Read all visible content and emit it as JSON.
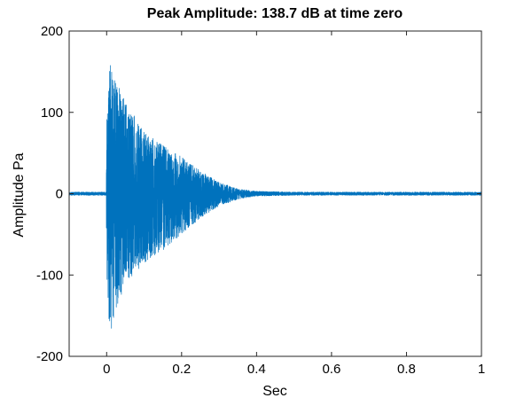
{
  "chart_data": {
    "type": "line",
    "title": "Peak Amplitude: 138.7 dB at time zero",
    "xlabel": "Sec",
    "ylabel": "Amplitude Pa",
    "xlim": [
      -0.1,
      1.0
    ],
    "ylim": [
      -200,
      200
    ],
    "xticks": [
      0,
      0.2,
      0.4,
      0.6,
      0.8,
      1.0
    ],
    "xtick_labels": [
      "0",
      "0.2",
      "0.4",
      "0.6",
      "0.8",
      "1"
    ],
    "yticks": [
      -200,
      -100,
      0,
      100,
      200
    ],
    "ytick_labels": [
      "-200",
      "-100",
      "0",
      "100",
      "200"
    ],
    "grid": false,
    "series": [
      {
        "color": "#0072BD",
        "description": "noisy decaying impulse response; near-zero noise before t=0, onset at t=0, envelope decaying to near zero by about t=0.4",
        "envelope": {
          "x": [
            -0.1,
            -0.001,
            0.0,
            0.01,
            0.02,
            0.05,
            0.1,
            0.15,
            0.2,
            0.25,
            0.3,
            0.35,
            0.4,
            0.5,
            1.0
          ],
          "upper": [
            2,
            2,
            100,
            165,
            145,
            115,
            75,
            60,
            45,
            28,
            14,
            6,
            3,
            2,
            2
          ],
          "lower": [
            -2,
            -2,
            -150,
            -172,
            -150,
            -110,
            -85,
            -70,
            -50,
            -30,
            -15,
            -7,
            -3,
            -2,
            -2
          ]
        }
      }
    ]
  }
}
